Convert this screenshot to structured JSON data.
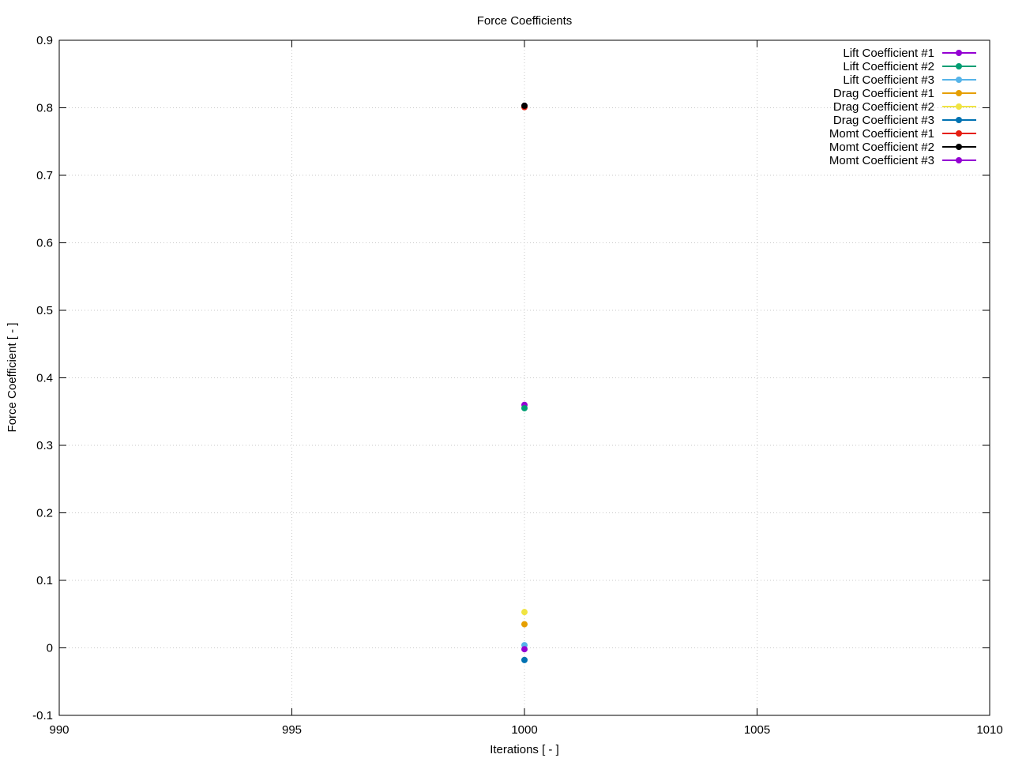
{
  "chart_data": {
    "type": "scatter",
    "title": "Force Coefficients",
    "xlabel": "Iterations [ - ]",
    "ylabel": "Force Coefficient [ - ]",
    "xlim": [
      990,
      1010
    ],
    "ylim": [
      -0.1,
      0.9
    ],
    "xticks": [
      990,
      995,
      1000,
      1005,
      1010
    ],
    "yticks": [
      -0.1,
      0,
      0.1,
      0.2,
      0.3,
      0.4,
      0.5,
      0.6,
      0.7,
      0.8,
      0.9
    ],
    "x_tick_labels": [
      "990",
      "995",
      "1000",
      "1005",
      "1010"
    ],
    "y_tick_labels": [
      "-0.1",
      "0",
      "0.1",
      "0.2",
      "0.3",
      "0.4",
      "0.5",
      "0.6",
      "0.7",
      "0.8",
      "0.9"
    ],
    "grid": true,
    "legend_position": "top-right",
    "series": [
      {
        "name": "Lift Coefficient #1",
        "color": "#9400d3",
        "x": [
          1000
        ],
        "y": [
          0.36
        ]
      },
      {
        "name": "Lift Coefficient #2",
        "color": "#009e73",
        "x": [
          1000
        ],
        "y": [
          0.355
        ]
      },
      {
        "name": "Lift Coefficient #3",
        "color": "#56b4e9",
        "x": [
          1000
        ],
        "y": [
          0.004
        ]
      },
      {
        "name": "Drag Coefficient #1",
        "color": "#e69f00",
        "x": [
          1000
        ],
        "y": [
          0.035
        ]
      },
      {
        "name": "Drag Coefficient #2",
        "color": "#f0e442",
        "x": [
          1000
        ],
        "y": [
          0.053
        ]
      },
      {
        "name": "Drag Coefficient #3",
        "color": "#0072b2",
        "x": [
          1000
        ],
        "y": [
          -0.018
        ]
      },
      {
        "name": "Momt Coefficient #1",
        "color": "#e51e10",
        "x": [
          1000
        ],
        "y": [
          0.801
        ]
      },
      {
        "name": "Momt Coefficient #2",
        "color": "#000000",
        "x": [
          1000
        ],
        "y": [
          0.803
        ]
      },
      {
        "name": "Momt Coefficient #3",
        "color": "#9400d3",
        "x": [
          1000
        ],
        "y": [
          -0.002
        ]
      }
    ]
  }
}
